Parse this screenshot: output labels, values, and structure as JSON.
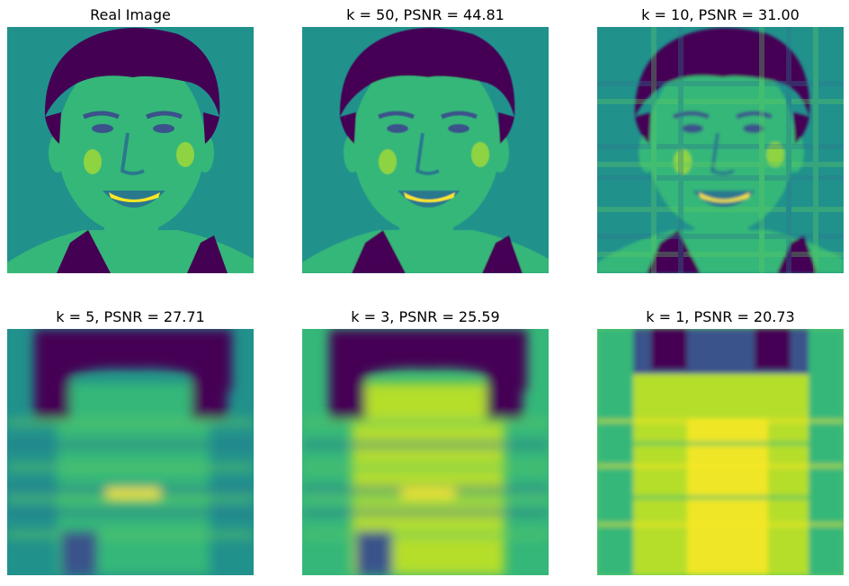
{
  "figure": {
    "panels": [
      {
        "title": "Real Image",
        "k": null,
        "psnr": null,
        "detail": "sharp"
      },
      {
        "title": "k = 50, PSNR = 44.81",
        "k": 50,
        "psnr": 44.81,
        "detail": "sharp"
      },
      {
        "title": "k = 10, PSNR = 31.00",
        "k": 10,
        "psnr": 31.0,
        "detail": "medium"
      },
      {
        "title": "k = 5, PSNR = 27.71",
        "k": 5,
        "psnr": 27.71,
        "detail": "low"
      },
      {
        "title": "k = 3, PSNR = 25.59",
        "k": 3,
        "psnr": 25.59,
        "detail": "lower"
      },
      {
        "title": "k = 1, PSNR = 20.73",
        "k": 1,
        "psnr": 20.73,
        "detail": "rank1"
      }
    ],
    "colormap": {
      "name": "viridis",
      "low": "#440154",
      "mid": "#21918c",
      "high": "#fde725"
    }
  }
}
